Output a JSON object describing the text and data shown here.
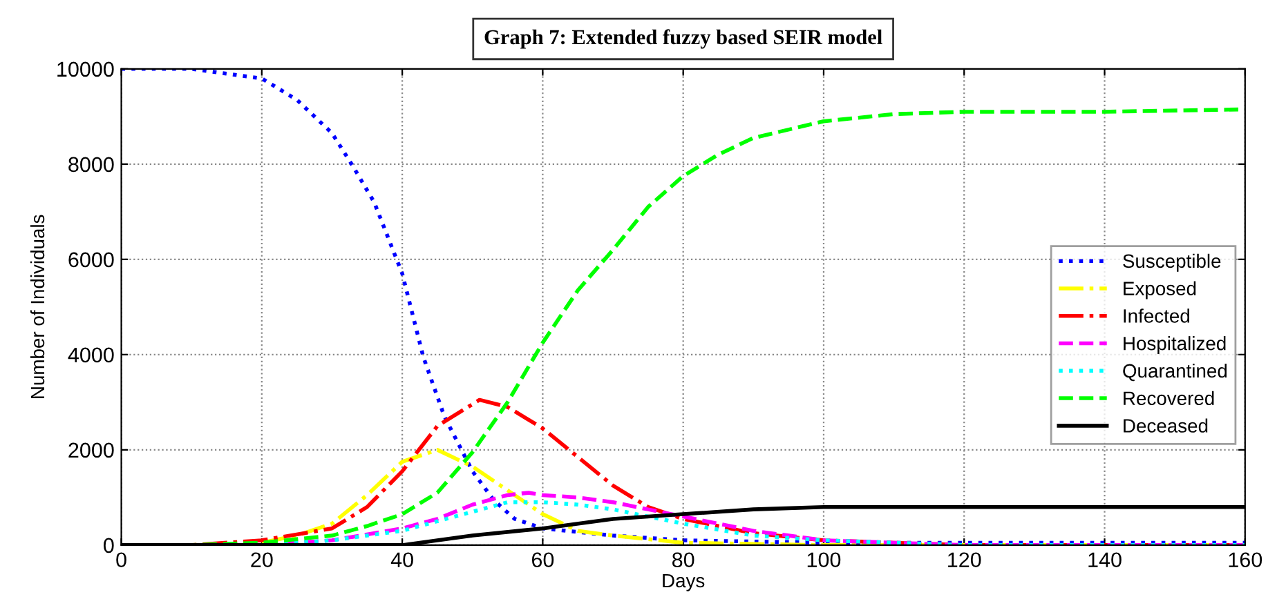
{
  "chart_data": {
    "type": "line",
    "title": "Graph 7: Extended fuzzy based SEIR model",
    "xlabel": "Days",
    "ylabel": "Number of Individuals",
    "xlim": [
      0,
      160
    ],
    "ylim": [
      0,
      10000
    ],
    "xticks": [
      0,
      20,
      40,
      60,
      80,
      100,
      120,
      140,
      160
    ],
    "yticks": [
      0,
      2000,
      4000,
      6000,
      8000,
      10000
    ],
    "grid": true,
    "legend": "right",
    "marker": "none",
    "series": [
      {
        "name": "Susceptible",
        "color": "#0000ff",
        "line_style": "dotted",
        "x": [
          0,
          10,
          20,
          25,
          30,
          33,
          36,
          40,
          43,
          46,
          50,
          53,
          56,
          60,
          70,
          80,
          100,
          120,
          140,
          160
        ],
        "values": [
          10000,
          10000,
          9800,
          9350,
          8650,
          7950,
          7200,
          5700,
          3950,
          2700,
          1550,
          950,
          550,
          350,
          200,
          100,
          50,
          50,
          50,
          50
        ]
      },
      {
        "name": "Exposed",
        "color": "#ffff00",
        "line_style": "dashdot",
        "x": [
          20,
          25,
          30,
          35,
          40,
          45,
          50,
          55,
          60,
          65,
          70,
          80,
          100,
          120,
          160
        ],
        "values": [
          50,
          200,
          450,
          1050,
          1750,
          2000,
          1650,
          1150,
          650,
          300,
          200,
          50,
          0,
          0,
          0
        ]
      },
      {
        "name": "Infected",
        "color": "#ff0000",
        "line_style": "dashdot",
        "x": [
          0,
          10,
          20,
          30,
          35,
          40,
          45,
          51,
          55,
          60,
          65,
          70,
          75,
          80,
          90,
          100,
          110,
          120,
          160
        ],
        "values": [
          0,
          0,
          100,
          350,
          800,
          1550,
          2500,
          3050,
          2900,
          2450,
          1850,
          1250,
          800,
          550,
          250,
          100,
          50,
          0,
          0
        ]
      },
      {
        "name": "Hospitalized",
        "color": "#ff00ff",
        "line_style": "dashed",
        "x": [
          0,
          20,
          30,
          40,
          45,
          50,
          55,
          58,
          60,
          65,
          70,
          75,
          80,
          90,
          100,
          110,
          120,
          160
        ],
        "values": [
          0,
          0,
          100,
          350,
          550,
          850,
          1050,
          1100,
          1050,
          1000,
          900,
          750,
          600,
          300,
          100,
          50,
          0,
          0
        ]
      },
      {
        "name": "Quarantined",
        "color": "#00ffff",
        "line_style": "dotted",
        "x": [
          0,
          20,
          30,
          40,
          45,
          50,
          55,
          57,
          60,
          65,
          70,
          75,
          80,
          90,
          100,
          110,
          120,
          160
        ],
        "values": [
          0,
          0,
          100,
          300,
          500,
          700,
          900,
          900,
          900,
          850,
          750,
          600,
          450,
          200,
          100,
          50,
          0,
          0
        ]
      },
      {
        "name": "Recovered",
        "color": "#00ff00",
        "line_style": "dashed",
        "x": [
          0,
          10,
          20,
          30,
          35,
          40,
          45,
          50,
          55,
          60,
          65,
          70,
          75,
          80,
          85,
          90,
          100,
          110,
          120,
          140,
          160
        ],
        "values": [
          0,
          0,
          50,
          200,
          400,
          650,
          1100,
          1950,
          3000,
          4250,
          5350,
          6200,
          7100,
          7750,
          8200,
          8550,
          8900,
          9050,
          9100,
          9100,
          9150
        ]
      },
      {
        "name": "Deceased",
        "color": "#000000",
        "line_style": "solid",
        "x": [
          0,
          20,
          38,
          40,
          50,
          60,
          70,
          80,
          90,
          100,
          120,
          140,
          160
        ],
        "values": [
          0,
          0,
          0,
          0,
          200,
          350,
          550,
          650,
          750,
          800,
          800,
          800,
          800
        ]
      }
    ]
  }
}
